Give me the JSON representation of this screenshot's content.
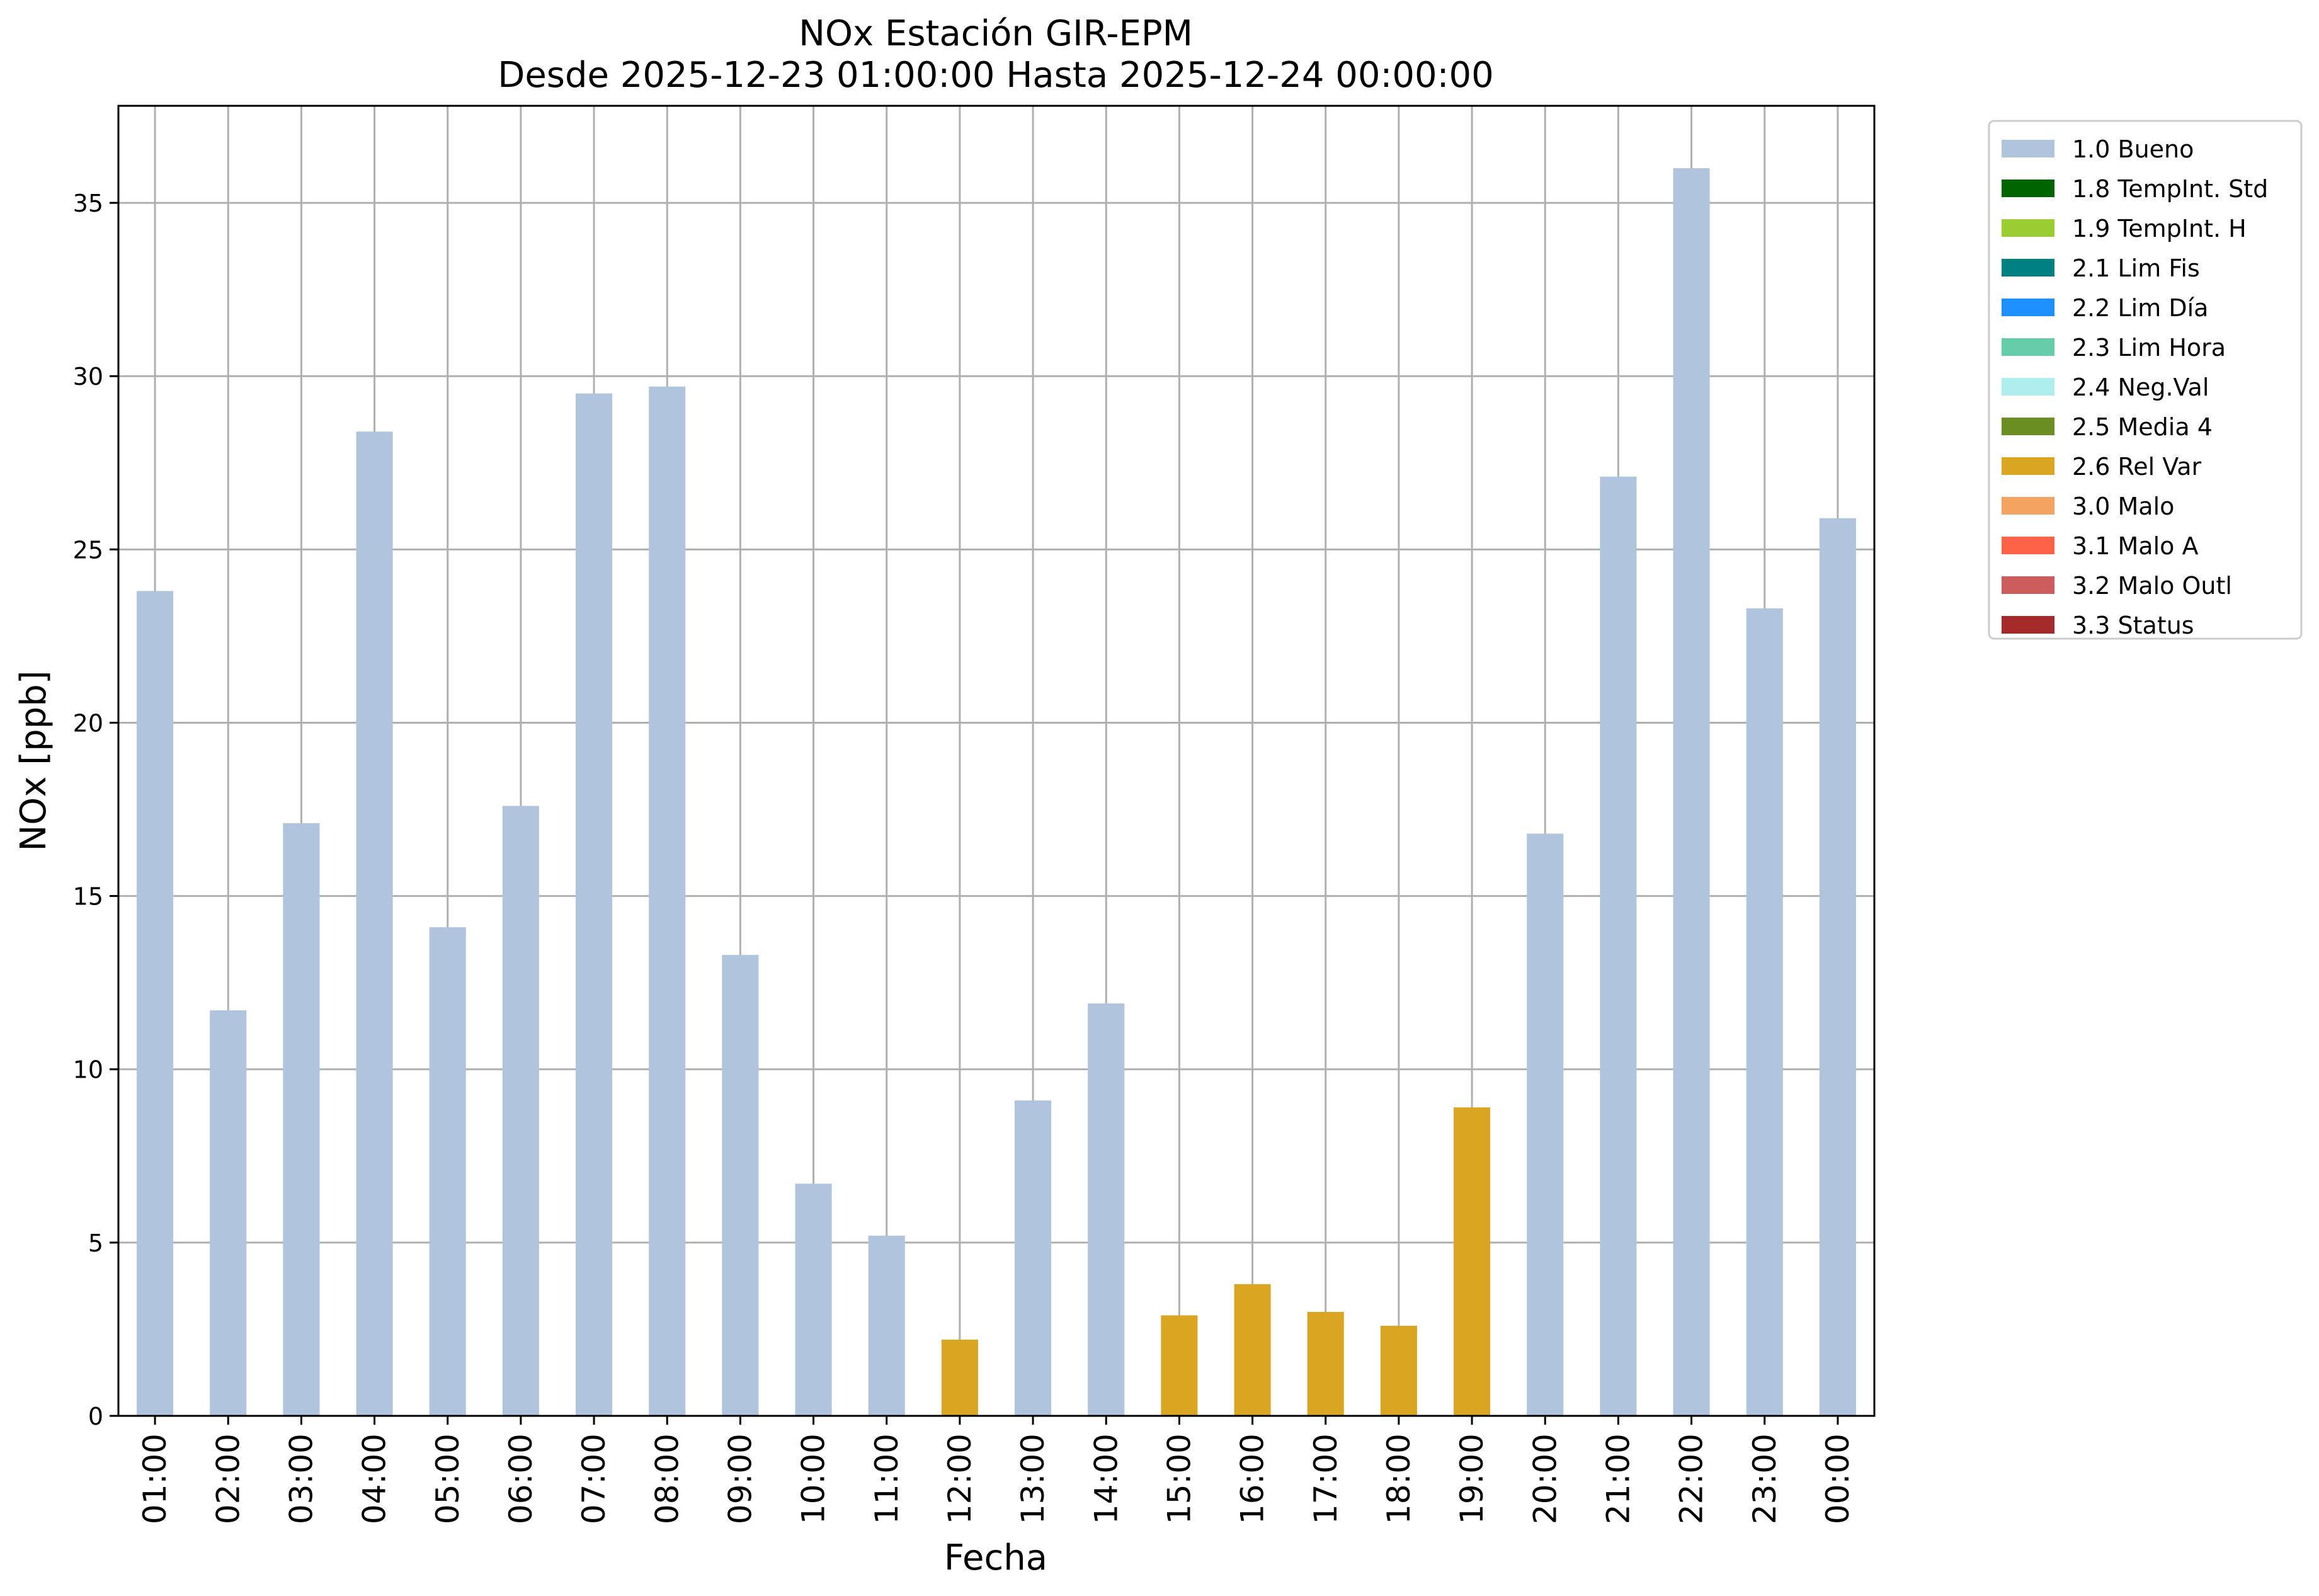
{
  "chart_data": {
    "type": "bar",
    "title": "NOx Estación GIR-EPM",
    "subtitle": "Desde 2025-12-23 01:00:00 Hasta 2025-12-24 00:00:00",
    "xlabel": "Fecha",
    "ylabel": "NOx [ppb]",
    "ylim": [
      0,
      37.8
    ],
    "yticks": [
      0,
      5,
      10,
      15,
      20,
      25,
      30,
      35
    ],
    "grid": true,
    "legend_placement": "outside-top-right",
    "categories": [
      "01:00",
      "02:00",
      "03:00",
      "04:00",
      "05:00",
      "06:00",
      "07:00",
      "08:00",
      "09:00",
      "10:00",
      "11:00",
      "12:00",
      "13:00",
      "14:00",
      "15:00",
      "16:00",
      "17:00",
      "18:00",
      "19:00",
      "20:00",
      "21:00",
      "22:00",
      "23:00",
      "00:00"
    ],
    "values": [
      23.8,
      11.7,
      17.1,
      28.4,
      14.1,
      17.6,
      29.5,
      29.7,
      13.3,
      6.7,
      5.2,
      2.2,
      9.1,
      11.9,
      2.9,
      3.8,
      3.0,
      2.6,
      8.9,
      16.8,
      27.1,
      36.0,
      23.3,
      25.9
    ],
    "flags": [
      "1.0 Bueno",
      "1.0 Bueno",
      "1.0 Bueno",
      "1.0 Bueno",
      "1.0 Bueno",
      "1.0 Bueno",
      "1.0 Bueno",
      "1.0 Bueno",
      "1.0 Bueno",
      "1.0 Bueno",
      "1.0 Bueno",
      "2.6 Rel Var",
      "1.0 Bueno",
      "1.0 Bueno",
      "2.6 Rel Var",
      "2.6 Rel Var",
      "2.6 Rel Var",
      "2.6 Rel Var",
      "2.6 Rel Var",
      "1.0 Bueno",
      "1.0 Bueno",
      "1.0 Bueno",
      "1.0 Bueno",
      "1.0 Bueno"
    ],
    "legend": [
      {
        "name": "1.0 Bueno",
        "color": "#b0c4de"
      },
      {
        "name": "1.8 TempInt. Std",
        "color": "#006400"
      },
      {
        "name": "1.9 TempInt. H",
        "color": "#9acd32"
      },
      {
        "name": "2.1 Lim Fis",
        "color": "#008080"
      },
      {
        "name": "2.2 Lim Día",
        "color": "#1e90ff"
      },
      {
        "name": "2.3 Lim Hora",
        "color": "#66cdaa"
      },
      {
        "name": "2.4 Neg.Val",
        "color": "#afeeee"
      },
      {
        "name": "2.5 Media 4",
        "color": "#6b8e23"
      },
      {
        "name": "2.6 Rel Var",
        "color": "#daa520"
      },
      {
        "name": "3.0 Malo",
        "color": "#f4a460"
      },
      {
        "name": "3.1 Malo A",
        "color": "#ff6347"
      },
      {
        "name": "3.2 Malo Outl",
        "color": "#cd5c5c"
      },
      {
        "name": "3.3 Status",
        "color": "#a52a2a"
      }
    ]
  }
}
